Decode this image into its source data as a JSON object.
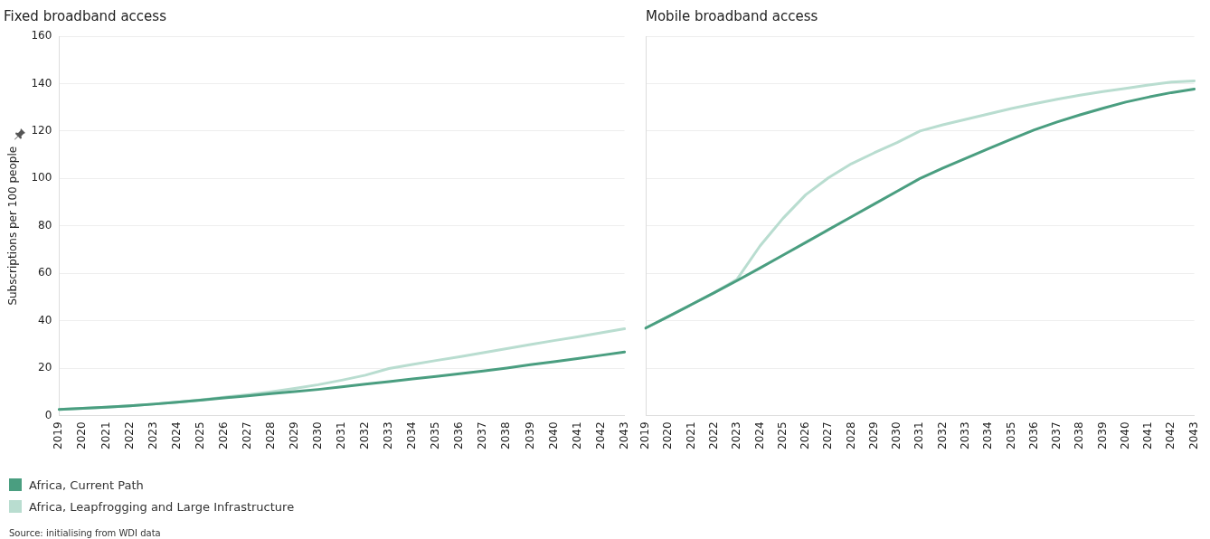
{
  "chart_data": [
    {
      "type": "line",
      "title": "Fixed broadband access",
      "ylabel": "Subscriptions per 100 people",
      "categories": [
        "2019",
        "2020",
        "2021",
        "2022",
        "2023",
        "2024",
        "2025",
        "2026",
        "2027",
        "2028",
        "2029",
        "2030",
        "2031",
        "2032",
        "2033",
        "2034",
        "2035",
        "2036",
        "2037",
        "2038",
        "2039",
        "2040",
        "2041",
        "2042",
        "2043"
      ],
      "series": [
        {
          "name": "Africa, Current Path",
          "color": "#4a9e80",
          "values": [
            2.6,
            3.0,
            3.5,
            4.1,
            4.8,
            5.6,
            6.5,
            7.4,
            8.3,
            9.2,
            10.1,
            11.0,
            12.1,
            13.2,
            14.3,
            15.4,
            16.5,
            17.6,
            18.8,
            20.0,
            21.4,
            22.7,
            24.0,
            25.4,
            26.8
          ]
        },
        {
          "name": "Africa, Leapfrogging and Large Infrastructure",
          "color": "#b9ddd0",
          "values": [
            2.6,
            3.0,
            3.5,
            4.1,
            4.8,
            5.6,
            6.6,
            7.7,
            8.8,
            10.0,
            11.4,
            13.0,
            14.9,
            17.0,
            19.8,
            21.5,
            23.2,
            24.8,
            26.5,
            28.2,
            29.9,
            31.6,
            33.2,
            34.9,
            36.6
          ]
        }
      ],
      "ylim": [
        0,
        160
      ],
      "yticks": [
        0,
        20,
        40,
        60,
        80,
        100,
        120,
        140,
        160
      ],
      "grid": "y",
      "marker": "none",
      "legend": "bottom",
      "annotations": [
        "Source: initialising from WDI data"
      ]
    },
    {
      "type": "line",
      "title": "Mobile broadband access",
      "categories": [
        "2019",
        "2020",
        "2021",
        "2022",
        "2023",
        "2024",
        "2025",
        "2026",
        "2027",
        "2028",
        "2029",
        "2030",
        "2031",
        "2032",
        "2033",
        "2034",
        "2035",
        "2036",
        "2037",
        "2038",
        "2039",
        "2040",
        "2041",
        "2042",
        "2043"
      ],
      "series": [
        {
          "color": "#4a9e80",
          "values": [
            36.9,
            41.8,
            46.8,
            51.8,
            56.9,
            62.2,
            67.6,
            73.0,
            78.4,
            83.8,
            89.2,
            94.6,
            100.0,
            104.4,
            108.5,
            112.6,
            116.6,
            120.5,
            123.8,
            126.8,
            129.6,
            132.2,
            134.3,
            136.2,
            137.7
          ]
        },
        {
          "color": "#b9ddd0",
          "values": [
            36.9,
            41.8,
            46.8,
            51.8,
            57.5,
            71.5,
            83.1,
            93.1,
            100.3,
            106.2,
            110.8,
            115.1,
            120.0,
            122.6,
            124.9,
            127.2,
            129.5,
            131.5,
            133.4,
            135.1,
            136.6,
            138.0,
            139.4,
            140.6,
            141.1
          ]
        }
      ],
      "ylim": [
        0,
        160
      ],
      "yticks": [
        0,
        20,
        40,
        60,
        80,
        100,
        120,
        140,
        160
      ],
      "grid": "y",
      "marker": "none",
      "tick_labels": "x"
    }
  ]
}
